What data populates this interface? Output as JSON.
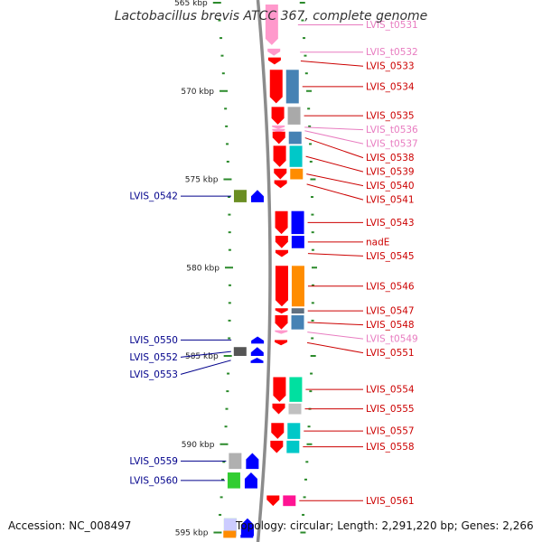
{
  "title": "Lactobacillus brevis ATCC 367, complete genome",
  "accession": "Accession: NC_008497",
  "summary": "Topology: circular; Length: 2,291,220 bp; Genes: 2,266",
  "colors": {
    "backbone": "#8c8c8c",
    "tick": "#2b8a2b",
    "gene_label": "#cc0000",
    "trna_label": "#e87cc0",
    "reverse_label": "#00008b",
    "gene": "#ff0000",
    "trna": "#ff99cc",
    "reverse_gene": "#0000ff"
  },
  "scale": {
    "start_kbp": 565,
    "end_kbp": 595,
    "labels": [
      "565 kbp",
      "570 kbp",
      "575 kbp",
      "580 kbp",
      "585 kbp",
      "590 kbp",
      "595 kbp"
    ]
  },
  "features": [
    {
      "name": "LVIS_t0531",
      "kind": "trna",
      "strand": "+",
      "start": 565.1,
      "end": 567.4,
      "cog": "#ff99cc"
    },
    {
      "name": "LVIS_t0532",
      "kind": "trna",
      "strand": "+",
      "start": 567.6,
      "end": 568.0,
      "cog": null
    },
    {
      "name": "LVIS_0533",
      "kind": "gene",
      "strand": "+",
      "start": 568.1,
      "end": 568.5,
      "cog": null
    },
    {
      "name": "LVIS_0534",
      "kind": "gene",
      "strand": "+",
      "start": 568.8,
      "end": 570.7,
      "cog": "#4682b4"
    },
    {
      "name": "LVIS_0535",
      "kind": "gene",
      "strand": "+",
      "start": 570.9,
      "end": 571.9,
      "cog": "#a9a9a9"
    },
    {
      "name": "LVIS_t0536",
      "kind": "trna",
      "strand": "+",
      "start": 571.95,
      "end": 572.1,
      "cog": null
    },
    {
      "name": "LVIS_t0537",
      "kind": "trna",
      "strand": "+",
      "start": 572.15,
      "end": 572.3,
      "cog": null
    },
    {
      "name": "LVIS_0538",
      "kind": "gene",
      "strand": "+",
      "start": 572.3,
      "end": 573.0,
      "cog": "#4682b4"
    },
    {
      "name": "LVIS_0539",
      "kind": "gene",
      "strand": "+",
      "start": 573.1,
      "end": 574.3,
      "cog": "#00c8c8"
    },
    {
      "name": "LVIS_0540",
      "kind": "gene",
      "strand": "+",
      "start": 574.4,
      "end": 575.0,
      "cog": "#ff8c00"
    },
    {
      "name": "LVIS_0541",
      "kind": "gene",
      "strand": "+",
      "start": 575.05,
      "end": 575.5,
      "cog": null
    },
    {
      "name": "LVIS_0542",
      "kind": "gene",
      "strand": "-",
      "start": 575.6,
      "end": 576.3,
      "cog": "#6b8e23"
    },
    {
      "name": "LVIS_0543",
      "kind": "gene",
      "strand": "+",
      "start": 576.8,
      "end": 578.1,
      "cog": "#0000ff"
    },
    {
      "name": "nadE",
      "kind": "gene",
      "strand": "+",
      "start": 578.2,
      "end": 578.9,
      "cog": "#0000ff"
    },
    {
      "name": "LVIS_0545",
      "kind": "gene",
      "strand": "+",
      "start": 579.0,
      "end": 579.4,
      "cog": null
    },
    {
      "name": "LVIS_0546",
      "kind": "gene",
      "strand": "+",
      "start": 579.9,
      "end": 582.2,
      "cog": "#ff8c00"
    },
    {
      "name": "LVIS_0547",
      "kind": "gene",
      "strand": "+",
      "start": 582.3,
      "end": 582.6,
      "cog": "#607080"
    },
    {
      "name": "LVIS_0548",
      "kind": "gene",
      "strand": "+",
      "start": 582.7,
      "end": 583.5,
      "cog": "#4682b4"
    },
    {
      "name": "LVIS_t0549",
      "kind": "trna",
      "strand": "+",
      "start": 583.55,
      "end": 583.75,
      "cog": null
    },
    {
      "name": "LVIS_0550",
      "kind": "gene",
      "strand": "-",
      "start": 583.9,
      "end": 584.3,
      "cog": null
    },
    {
      "name": "LVIS_0551",
      "kind": "gene",
      "strand": "+",
      "start": 584.1,
      "end": 584.4,
      "cog": null
    },
    {
      "name": "LVIS_0552",
      "kind": "gene",
      "strand": "-",
      "start": 584.5,
      "end": 585.0,
      "cog": "#555555"
    },
    {
      "name": "LVIS_0553",
      "kind": "gene",
      "strand": "-",
      "start": 585.1,
      "end": 585.4,
      "cog": null
    },
    {
      "name": "LVIS_0554",
      "kind": "gene",
      "strand": "+",
      "start": 586.2,
      "end": 587.6,
      "cog": "#00e0a0"
    },
    {
      "name": "LVIS_0555",
      "kind": "gene",
      "strand": "+",
      "start": 587.7,
      "end": 588.3,
      "cog": "#c0c0c0"
    },
    {
      "name": "LVIS_0557",
      "kind": "gene",
      "strand": "+",
      "start": 588.8,
      "end": 589.7,
      "cog": "#00c8c8"
    },
    {
      "name": "LVIS_0558",
      "kind": "gene",
      "strand": "+",
      "start": 589.8,
      "end": 590.5,
      "cog": "#00c8c8"
    },
    {
      "name": "LVIS_0559",
      "kind": "gene",
      "strand": "-",
      "start": 590.5,
      "end": 591.4,
      "cog": "#b0b0b0"
    },
    {
      "name": "LVIS_0560",
      "kind": "gene",
      "strand": "-",
      "start": 591.6,
      "end": 592.5,
      "cog": "#32cd32"
    },
    {
      "name": "LVIS_0561",
      "kind": "gene",
      "strand": "+",
      "start": 592.9,
      "end": 593.5,
      "cog": "#ff1493"
    },
    {
      "name": "",
      "kind": "gene",
      "strand": "-",
      "start": 594.2,
      "end": 595.2,
      "cog": "#32cd32"
    },
    {
      "name": "",
      "kind": "gene",
      "strand": "-",
      "start": 594.2,
      "end": 595.2,
      "cog": "#ccccff"
    },
    {
      "name": "",
      "kind": "gene",
      "strand": "-",
      "start": 594.9,
      "end": 595.3,
      "cog": "#ff8c00"
    }
  ]
}
